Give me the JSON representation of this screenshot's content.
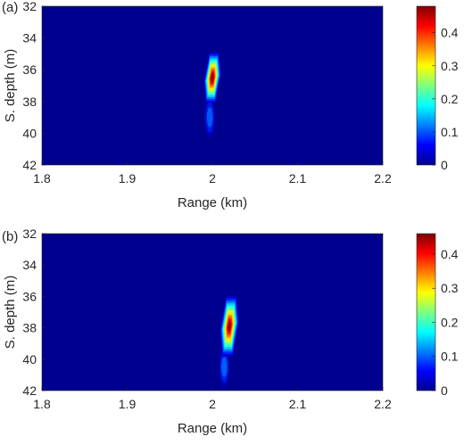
{
  "chart_data": [
    {
      "type": "heatmap",
      "panel_label": "(a)",
      "xlabel": "Range (km)",
      "ylabel": "S. depth (m)",
      "xlim": [
        1.8,
        2.2
      ],
      "ylim": [
        32,
        42
      ],
      "y_reversed": true,
      "xticks": [
        "1.8",
        "1.9",
        "2",
        "2.1",
        "2.2"
      ],
      "yticks": [
        "32",
        "34",
        "36",
        "38",
        "40",
        "42"
      ],
      "colorbar": {
        "range": [
          0,
          0.48
        ],
        "ticks": [
          "0",
          "0.1",
          "0.2",
          "0.3",
          "0.4"
        ],
        "colormap": "jet"
      },
      "peak": {
        "range_km": 2.0,
        "depth_m": 36.5,
        "value": 0.47,
        "range_width_km": 0.009,
        "depth_width_m": 0.9
      },
      "tail": {
        "range_km": 1.997,
        "depth_m": 39.0,
        "value": 0.12
      }
    },
    {
      "type": "heatmap",
      "panel_label": "(b)",
      "xlabel": "Range (km)",
      "ylabel": "S. depth (m)",
      "xlim": [
        1.8,
        2.2
      ],
      "ylim": [
        32,
        42
      ],
      "y_reversed": true,
      "xticks": [
        "1.8",
        "1.9",
        "2",
        "2.1",
        "2.2"
      ],
      "yticks": [
        "32",
        "34",
        "36",
        "38",
        "40",
        "42"
      ],
      "colorbar": {
        "range": [
          0,
          0.46
        ],
        "ticks": [
          "0",
          "0.1",
          "0.2",
          "0.3",
          "0.4"
        ],
        "colormap": "jet"
      },
      "peak": {
        "range_km": 2.02,
        "depth_m": 37.9,
        "value": 0.45,
        "range_width_km": 0.01,
        "depth_width_m": 1.1
      },
      "tail": {
        "range_km": 2.014,
        "depth_m": 40.5,
        "value": 0.12
      }
    }
  ]
}
